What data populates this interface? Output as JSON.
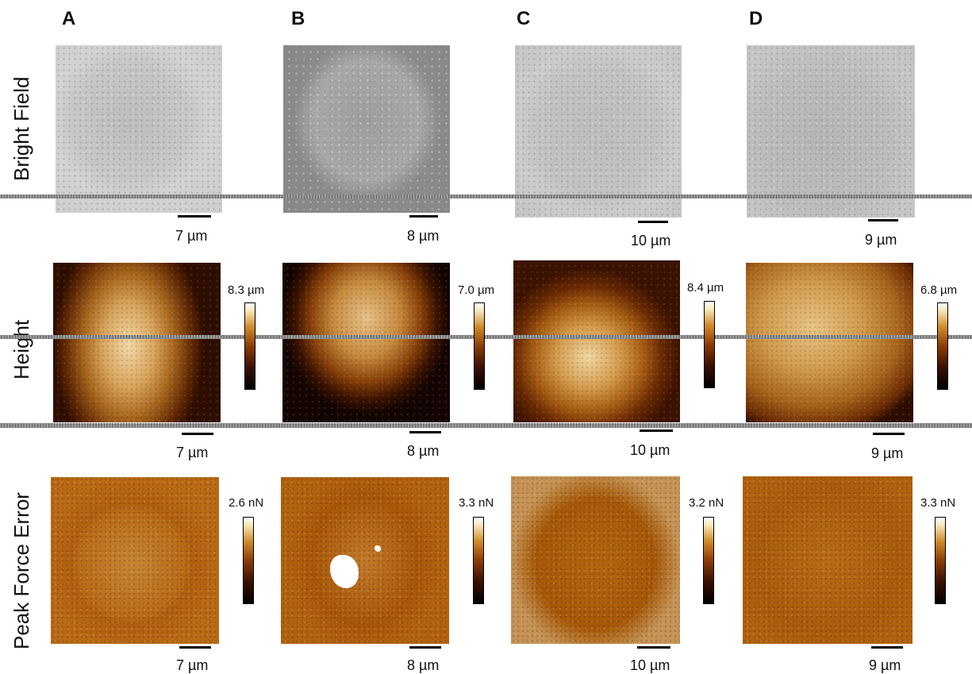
{
  "columns": [
    "A",
    "B",
    "C",
    "D"
  ],
  "rows": {
    "bright_field": "Bright Field",
    "height": "Height",
    "peak_force_error": "Peak Force Error"
  },
  "scale_bars": {
    "bright_field": [
      "7 µm",
      "8 µm",
      "10 µm",
      "9 µm"
    ],
    "height": [
      "7 µm",
      "8 µm",
      "10 µm",
      "9 µm"
    ],
    "peak_force_error": [
      "7 µm",
      "8 µm",
      "10 µm",
      "9 µm"
    ]
  },
  "colorbar_max": {
    "height": [
      "8.3 µm",
      "7.0 µm",
      "8.4 µm",
      "6.8 µm"
    ],
    "peak_force_error": [
      "2.6 nN",
      "3.3 nN",
      "3.2 nN",
      "3.3 nN"
    ]
  },
  "colors": {
    "colorbar_low": "#000000",
    "colorbar_mid": "#8a3d06",
    "colorbar_high": "#ffffff"
  }
}
